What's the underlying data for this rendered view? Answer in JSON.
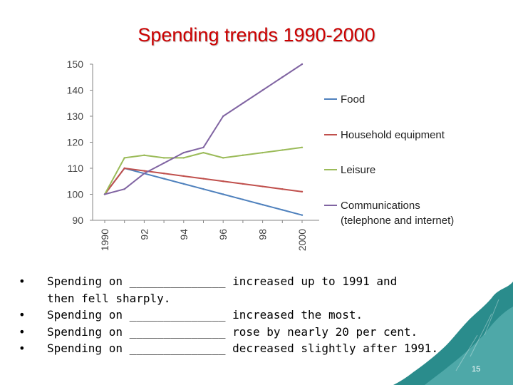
{
  "title": "Spending trends 1990-2000",
  "chart_data": {
    "type": "line",
    "x": [
      1990,
      1991,
      1992,
      1993,
      1994,
      1995,
      1996,
      1997,
      1998,
      1999,
      2000
    ],
    "x_tick_values": [
      1990,
      1992,
      1994,
      1996,
      1998,
      2000
    ],
    "x_tick_labels": [
      "1990",
      "92",
      "94",
      "96",
      "98",
      "2000"
    ],
    "ylim": [
      90,
      150
    ],
    "y_ticks": [
      90,
      100,
      110,
      120,
      130,
      140,
      150
    ],
    "xlabel": "",
    "ylabel": "",
    "grid": false,
    "legend_position": "right",
    "series": [
      {
        "name": "Food",
        "color": "#4f81bd",
        "values": [
          100,
          110,
          108,
          106,
          104,
          102,
          100,
          98,
          96,
          94,
          92
        ]
      },
      {
        "name": "Household equipment",
        "color": "#c0504d",
        "values": [
          100,
          110,
          109,
          108,
          107,
          106,
          105,
          104,
          103,
          102,
          101
        ]
      },
      {
        "name": "Leisure",
        "color": "#9bbb59",
        "values": [
          100,
          114,
          115,
          114,
          114,
          116,
          114,
          115,
          116,
          117,
          118
        ]
      },
      {
        "name": "Communications",
        "legend_lines": [
          "Communications",
          "(telephone and internet)"
        ],
        "color": "#8064a2",
        "values": [
          100,
          102,
          108,
          112,
          116,
          118,
          130,
          135,
          140,
          145,
          150
        ]
      }
    ]
  },
  "bullets": [
    {
      "marker": "•",
      "lines": [
        "Spending on ______________ increased up to 1991 and",
        "then fell sharply."
      ]
    },
    {
      "marker": "•",
      "lines": [
        "Spending on ______________ increased the most."
      ]
    },
    {
      "marker": "•",
      "lines": [
        "Spending on ______________ rose by nearly 20 per cent."
      ]
    },
    {
      "marker": "•",
      "lines": [
        "Spending on ______________ decreased slightly after 1991."
      ]
    }
  ],
  "page_number": "15",
  "colors": {
    "title": "#cc0000",
    "axis": "#868686",
    "decoration": "#2a8c8c"
  }
}
